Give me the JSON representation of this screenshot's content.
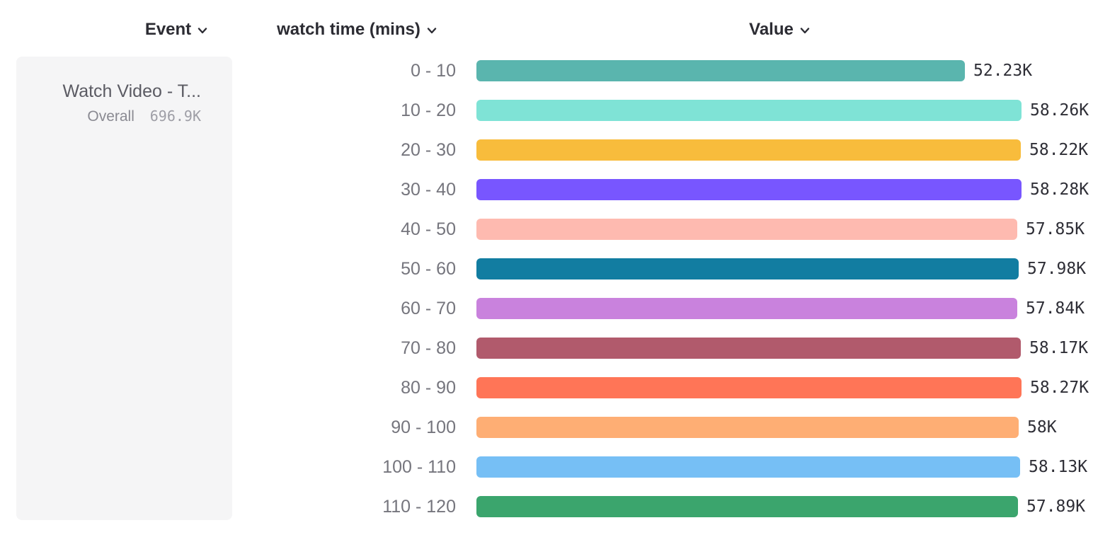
{
  "columns": {
    "event": {
      "label": "Event"
    },
    "breakdown": {
      "label": "watch time (mins)"
    },
    "value": {
      "label": "Value"
    }
  },
  "event_card": {
    "title": "Watch Video - T...",
    "overall_label": "Overall",
    "overall_value": "696.9K"
  },
  "icons": {
    "dropdown": "chevron-down-icon"
  },
  "colors": {
    "header_text": "#2c2c33",
    "category_text": "#75757d",
    "value_text": "#2e2e36",
    "card_background": "#f5f5f6"
  },
  "chart_data": {
    "type": "bar",
    "orientation": "horizontal",
    "title": "",
    "xlabel": "Value",
    "ylabel": "watch time (mins)",
    "xlim": [
      0,
      58280
    ],
    "grid": false,
    "legend": false,
    "categories": [
      "0 - 10",
      "10 - 20",
      "20 - 30",
      "30 - 40",
      "40 - 50",
      "50 - 60",
      "60 - 70",
      "70 - 80",
      "80 - 90",
      "90 - 100",
      "100 - 110",
      "110 - 120"
    ],
    "values": [
      52230,
      58260,
      58220,
      58280,
      57850,
      57980,
      57840,
      58170,
      58270,
      58000,
      58130,
      57890
    ],
    "value_labels": [
      "52.23K",
      "58.26K",
      "58.22K",
      "58.28K",
      "57.85K",
      "57.98K",
      "57.84K",
      "58.17K",
      "58.27K",
      "58K",
      "58.13K",
      "57.89K"
    ],
    "colors": [
      "#5AB5AE",
      "#7FE3D6",
      "#F8BC3C",
      "#7856FF",
      "#FEBAB0",
      "#127DA1",
      "#C982DD",
      "#B15A6C",
      "#FF7557",
      "#FEAE74",
      "#76BFF5",
      "#3BA56D"
    ]
  }
}
